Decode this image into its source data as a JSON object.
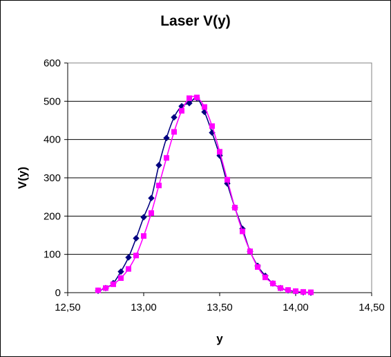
{
  "chart_data": {
    "type": "line",
    "title": "Laser V(y)",
    "xlabel": "y",
    "ylabel": "V(y)",
    "xlim": [
      12.5,
      14.5
    ],
    "ylim": [
      0,
      600
    ],
    "x_ticks": [
      "12,50",
      "13,00",
      "13,50",
      "14,00",
      "14,50"
    ],
    "y_ticks": [
      "0",
      "100",
      "200",
      "300",
      "400",
      "500",
      "600"
    ],
    "grid": "horizontal major gridlines",
    "legend": "none",
    "series": [
      {
        "color": "#000080",
        "marker": "diamond",
        "points": [
          [
            12.7,
            5
          ],
          [
            12.75,
            12
          ],
          [
            12.8,
            25
          ],
          [
            12.85,
            55
          ],
          [
            12.9,
            92
          ],
          [
            12.95,
            142
          ],
          [
            13.0,
            197
          ],
          [
            13.05,
            247
          ],
          [
            13.1,
            333
          ],
          [
            13.15,
            404
          ],
          [
            13.2,
            458
          ],
          [
            13.25,
            487
          ],
          [
            13.3,
            495
          ],
          [
            13.35,
            508
          ],
          [
            13.4,
            472
          ],
          [
            13.45,
            418
          ],
          [
            13.5,
            358
          ],
          [
            13.55,
            285
          ],
          [
            13.6,
            222
          ],
          [
            13.65,
            167
          ],
          [
            13.7,
            108
          ],
          [
            13.75,
            70
          ],
          [
            13.8,
            44
          ],
          [
            13.85,
            24
          ],
          [
            13.9,
            12
          ],
          [
            13.95,
            6
          ],
          [
            14.0,
            3
          ],
          [
            14.05,
            1
          ],
          [
            14.1,
            0
          ]
        ]
      },
      {
        "color": "#ff00ff",
        "marker": "square",
        "points": [
          [
            12.7,
            6
          ],
          [
            12.75,
            12
          ],
          [
            12.8,
            22
          ],
          [
            12.85,
            38
          ],
          [
            12.9,
            62
          ],
          [
            12.95,
            97
          ],
          [
            13.0,
            148
          ],
          [
            13.05,
            208
          ],
          [
            13.1,
            280
          ],
          [
            13.15,
            352
          ],
          [
            13.2,
            420
          ],
          [
            13.25,
            475
          ],
          [
            13.3,
            508
          ],
          [
            13.35,
            510
          ],
          [
            13.4,
            485
          ],
          [
            13.45,
            435
          ],
          [
            13.5,
            368
          ],
          [
            13.55,
            295
          ],
          [
            13.6,
            222
          ],
          [
            13.65,
            160
          ],
          [
            13.7,
            108
          ],
          [
            13.75,
            67
          ],
          [
            13.8,
            40
          ],
          [
            13.85,
            24
          ],
          [
            13.9,
            12
          ],
          [
            13.95,
            7
          ],
          [
            14.0,
            4
          ],
          [
            14.05,
            2
          ],
          [
            14.1,
            1
          ]
        ]
      }
    ]
  }
}
